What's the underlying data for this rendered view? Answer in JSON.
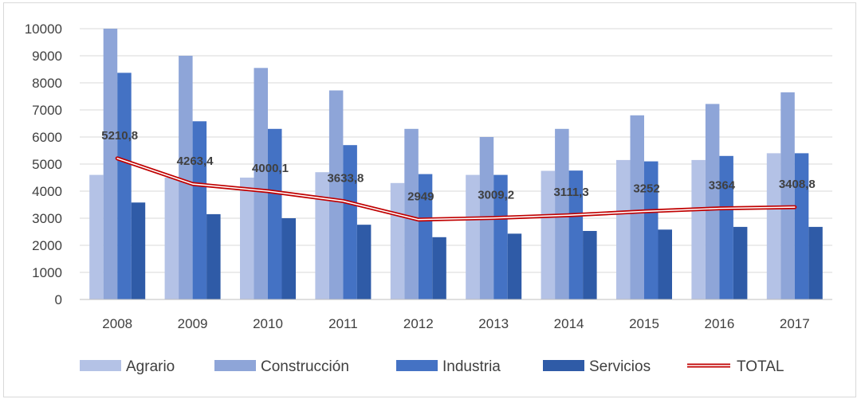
{
  "chart_data": {
    "type": "bar",
    "title": "",
    "xlabel": "",
    "ylabel": "",
    "categories": [
      "2008",
      "2009",
      "2010",
      "2011",
      "2012",
      "2013",
      "2014",
      "2015",
      "2016",
      "2017"
    ],
    "ylim": [
      0,
      10000
    ],
    "yticks": [
      0,
      1000,
      2000,
      3000,
      4000,
      5000,
      6000,
      7000,
      8000,
      9000,
      10000
    ],
    "grid": true,
    "legend_position": "bottom",
    "series": [
      {
        "name": "Agrario",
        "kind": "bar",
        "color": "#b4c2e6",
        "values": [
          4600,
          4500,
          4500,
          4700,
          4300,
          4600,
          4750,
          5150,
          5150,
          5400
        ]
      },
      {
        "name": "Construcción",
        "kind": "bar",
        "color": "#8ea5d8",
        "values": [
          10000,
          9000,
          8550,
          7720,
          6300,
          6000,
          6300,
          6800,
          7220,
          7650
        ]
      },
      {
        "name": "Industria",
        "kind": "bar",
        "color": "#4472c4",
        "values": [
          8370,
          6580,
          6300,
          5700,
          4630,
          4600,
          4760,
          5100,
          5300,
          5400
        ]
      },
      {
        "name": "Servicios",
        "kind": "bar",
        "color": "#2f5ba7",
        "values": [
          3580,
          3150,
          3000,
          2760,
          2300,
          2430,
          2530,
          2580,
          2680,
          2680
        ]
      },
      {
        "name": "TOTAL",
        "kind": "line",
        "color": "#c00000",
        "values": [
          5210.8,
          4263.4,
          4000.1,
          3633.8,
          2949,
          3009.2,
          3111.3,
          3252,
          3364,
          3408.8
        ],
        "labels": [
          "5210,8",
          "4263,4",
          "4000,1",
          "3633,8",
          "2949",
          "3009,2",
          "3111,3",
          "3252",
          "3364",
          "3408,8"
        ]
      }
    ]
  }
}
